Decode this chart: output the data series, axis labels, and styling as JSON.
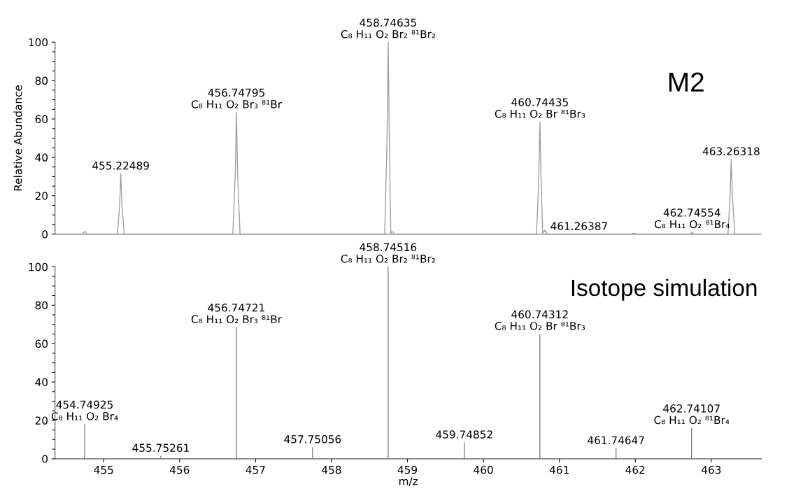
{
  "chart_data": [
    {
      "type": "line",
      "ylabel": "Relative Abundance",
      "xlim": [
        454.36,
        463.66
      ],
      "ylim": [
        0,
        100
      ],
      "tick_labels": "y",
      "grid": false,
      "legend": false,
      "yticks": [
        0,
        {
          "value": 5,
          "label": null
        },
        {
          "value": 10,
          "label": null
        },
        {
          "value": 15,
          "label": null
        },
        20,
        {
          "value": 25,
          "label": null
        },
        {
          "value": 30,
          "label": null
        },
        {
          "value": 35,
          "label": null
        },
        40,
        {
          "value": 45,
          "label": null
        },
        {
          "value": 50,
          "label": null
        },
        {
          "value": 55,
          "label": null
        },
        60,
        {
          "value": 65,
          "label": null
        },
        {
          "value": 70,
          "label": null
        },
        {
          "value": 75,
          "label": null
        },
        80,
        {
          "value": 85,
          "label": null
        },
        {
          "value": 90,
          "label": null
        },
        {
          "value": 95,
          "label": null
        },
        100
      ],
      "series": [
        {
          "color": "#a0a0a0",
          "x": [
            454.36,
            454.72,
            454.75,
            454.78,
            455.18,
            455.21,
            455.225,
            455.24,
            455.27,
            456.7,
            456.733,
            456.748,
            456.763,
            456.795,
            458.7,
            458.731,
            458.746,
            458.761,
            458.78,
            458.8,
            458.83,
            460.7,
            460.729,
            460.744,
            460.759,
            460.78,
            460.81,
            460.84,
            461.95,
            461.98,
            462.01,
            462.72,
            462.746,
            462.77,
            463.22,
            463.248,
            463.263,
            463.278,
            463.31,
            463.6
          ],
          "values": [
            0,
            0,
            1.5,
            0,
            0,
            15,
            31.5,
            15,
            0,
            0,
            32,
            63.5,
            32,
            0,
            0,
            50,
            100,
            50,
            0.5,
            1.5,
            0,
            0,
            29,
            58.5,
            29,
            0.5,
            2,
            0,
            0,
            0.5,
            0,
            0,
            1,
            0,
            0,
            20,
            39,
            20,
            0,
            0
          ]
        }
      ],
      "annotations": [
        {
          "text": "455.22489",
          "x": 455.225,
          "y": 31.5
        },
        {
          "text": "456.74795\nC₈ H₁₁ O₂ Br₃ ⁸¹Br",
          "x": 456.748,
          "y": 63.5
        },
        {
          "text": "458.74635\nC₈ H₁₁ O₂ Br₂ ⁸¹Br₂",
          "x": 458.746,
          "y": 100
        },
        {
          "text": "460.74435\nC₈ H₁₁ O₂ Br ⁸¹Br₃",
          "x": 460.744,
          "y": 58.5
        },
        {
          "text": "461.26387",
          "x": 461.26,
          "y": 0
        },
        {
          "text": "462.74554\nC₈ H₁₁ O₂ ⁸¹Br₄",
          "x": 462.746,
          "y": 1
        },
        {
          "text": "463.26318",
          "x": 463.263,
          "y": 39
        },
        "M2"
      ]
    },
    {
      "type": "bar",
      "xlabel": "m/z",
      "xlim": [
        454.36,
        463.66
      ],
      "ylim": [
        0,
        100
      ],
      "grid": false,
      "legend": false,
      "data_labels": false,
      "xticks": [
        455,
        456,
        457,
        458,
        459,
        460,
        461,
        462,
        463
      ],
      "yticks": [
        0,
        {
          "value": 5,
          "label": null
        },
        {
          "value": 10,
          "label": null
        },
        {
          "value": 15,
          "label": null
        },
        20,
        {
          "value": 25,
          "label": null
        },
        {
          "value": 30,
          "label": null
        },
        {
          "value": 35,
          "label": null
        },
        40,
        {
          "value": 45,
          "label": null
        },
        {
          "value": 50,
          "label": null
        },
        {
          "value": 55,
          "label": null
        },
        60,
        {
          "value": 65,
          "label": null
        },
        {
          "value": 70,
          "label": null
        },
        {
          "value": 75,
          "label": null
        },
        80,
        {
          "value": 85,
          "label": null
        },
        {
          "value": 90,
          "label": null
        },
        {
          "value": 95,
          "label": null
        },
        100
      ],
      "x": [
        454.74925,
        455.75261,
        456.74721,
        457.75056,
        458.74516,
        459.74852,
        460.74312,
        461.74647,
        462.74107
      ],
      "series": [
        {
          "color": "#606060",
          "values": [
            18,
            1.5,
            68.5,
            6,
            100,
            8.5,
            65,
            5.5,
            16
          ]
        }
      ],
      "annotations": [
        {
          "text": "454.74925\nC₈ H₁₁ O₂ Br₄",
          "x": 454.74925,
          "y": 18
        },
        {
          "text": "455.75261",
          "x": 455.75261,
          "y": 1.5
        },
        {
          "text": "456.74721\nC₈ H₁₁ O₂ Br₃ ⁸¹Br",
          "x": 456.74721,
          "y": 68.5
        },
        {
          "text": "457.75056",
          "x": 457.75056,
          "y": 6
        },
        {
          "text": "458.74516\nC₈ H₁₁ O₂ Br₂ ⁸¹Br₂",
          "x": 458.74516,
          "y": 100
        },
        {
          "text": "459.74852",
          "x": 459.74852,
          "y": 8.5
        },
        {
          "text": "460.74312\nC₈ H₁₁ O₂ Br ⁸¹Br₃",
          "x": 460.74312,
          "y": 65
        },
        {
          "text": "461.74647",
          "x": 461.74647,
          "y": 5.5
        },
        {
          "text": "462.74107\nC₈ H₁₁ O₂ ⁸¹Br₄",
          "x": 462.74107,
          "y": 16
        },
        "Isotope simulation"
      ]
    }
  ]
}
